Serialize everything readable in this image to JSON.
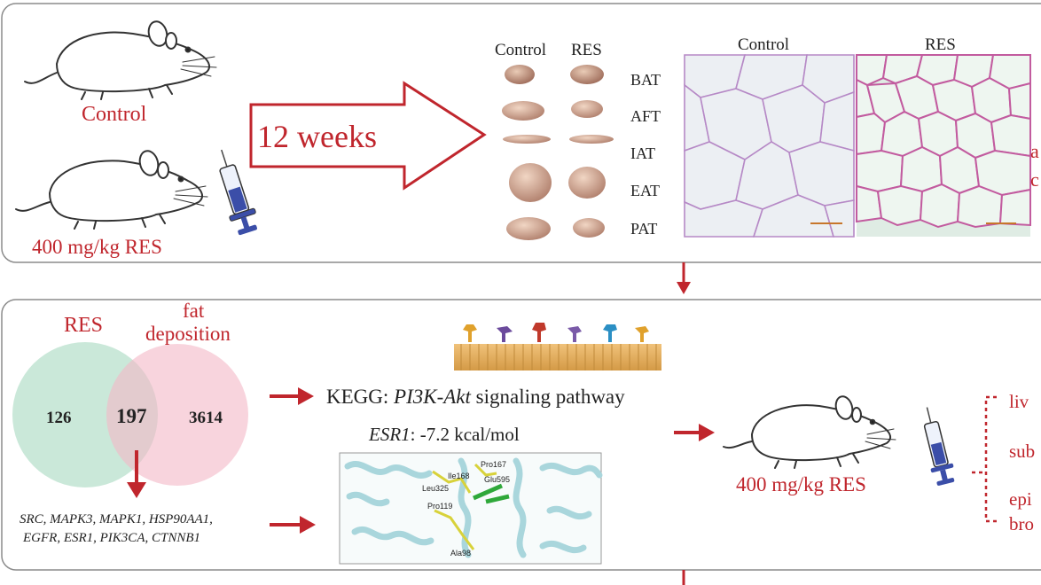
{
  "colors": {
    "accent_red": "#c0262d",
    "venn_green": "#b8e0cc",
    "venn_pink": "#f3b8c6",
    "panel_border": "#8c8c8c"
  },
  "panel1": {
    "label_control": "Control",
    "label_res_dose": "400 mg/kg RES",
    "duration_label": "12 weeks",
    "tissue_header_control": "Control",
    "tissue_header_res": "RES",
    "tissues": [
      "BAT",
      "AFT",
      "IAT",
      "EAT",
      "PAT"
    ],
    "histo_header_control": "Control",
    "histo_header_res": "RES",
    "cut_text": [
      "a",
      "c"
    ]
  },
  "panel2": {
    "venn_label_left": "RES",
    "venn_label_right_line1": "fat",
    "venn_label_right_line2": "deposition",
    "venn_left_count": "126",
    "venn_overlap_count": "197",
    "venn_right_count": "3614",
    "genes_line1": "SRC, MAPK3, MAPK1, HSP90AA1,",
    "genes_line2": "EGFR, ESR1, PIK3CA, CTNNB1",
    "kegg_prefix": "KEGG: ",
    "kegg_pathway": "PI3K-Akt",
    "kegg_suffix": " signaling pathway",
    "esr1_gene": "ESR1",
    "esr1_energy": ": -7.2 kcal/mol",
    "docking_residues": [
      "Pro167",
      "Ile168",
      "Glu595",
      "Leu325",
      "Pro119",
      "Ala98"
    ],
    "dose_label": "400 mg/kg RES",
    "outcome_cut": [
      "liv",
      "sub",
      "epi",
      "bro"
    ]
  }
}
